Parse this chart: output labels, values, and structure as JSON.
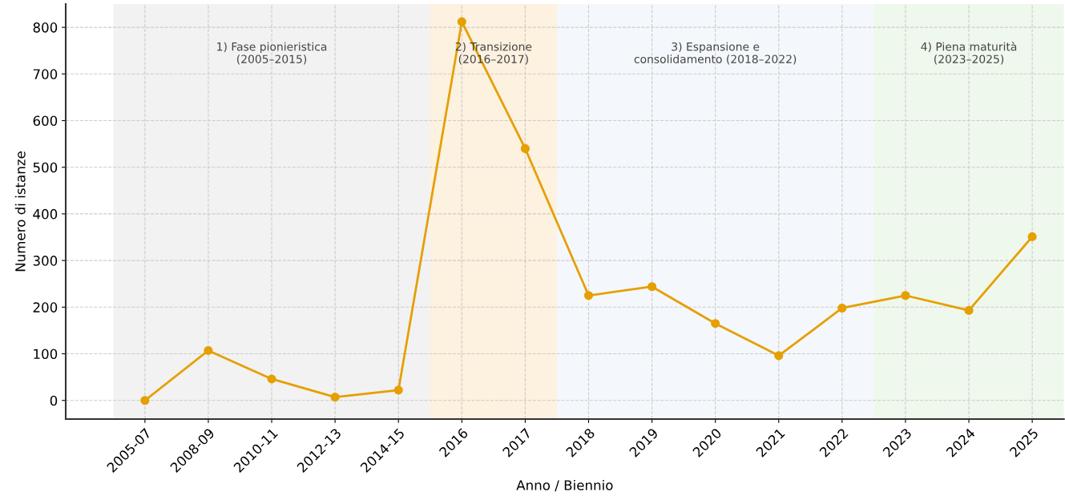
{
  "chart_data": {
    "type": "line",
    "xlabel": "Anno / Biennio",
    "ylabel": "Numero di istanze",
    "categories": [
      "2005-07",
      "2008-09",
      "2010-11",
      "2012-13",
      "2014-15",
      "2016",
      "2017",
      "2018",
      "2019",
      "2020",
      "2021",
      "2022",
      "2023",
      "2024",
      "2025"
    ],
    "series": [
      {
        "color": "#e69f00",
        "values": [
          0,
          107,
          46,
          7,
          22,
          812,
          540,
          225,
          244,
          165,
          96,
          198,
          225,
          193,
          351
        ]
      }
    ],
    "ylim": [
      -40,
      850
    ],
    "yticks": [
      0,
      100,
      200,
      300,
      400,
      500,
      600,
      700,
      800
    ],
    "bands": [
      {
        "axis": "x",
        "from": "2005-07",
        "to": "2014-15",
        "label": "1) Fase pionieristica\n(2005–2015)",
        "color": "#f2f2f2"
      },
      {
        "axis": "x",
        "from": "2016",
        "to": "2017",
        "label": "2) Transizione\n(2016–2017)",
        "color": "#fdf1df"
      },
      {
        "axis": "x",
        "from": "2018",
        "to": "2022",
        "label": "3) Espansione e\nconsolidamento (2018–2022)",
        "color": "#f4f8fc"
      },
      {
        "axis": "x",
        "from": "2023",
        "to": "2025",
        "label": "4) Piena maturità\n(2023–2025)",
        "color": "#eff8ec"
      }
    ],
    "grid": true,
    "marker": "circle",
    "line_style": "solid",
    "legend": false
  }
}
